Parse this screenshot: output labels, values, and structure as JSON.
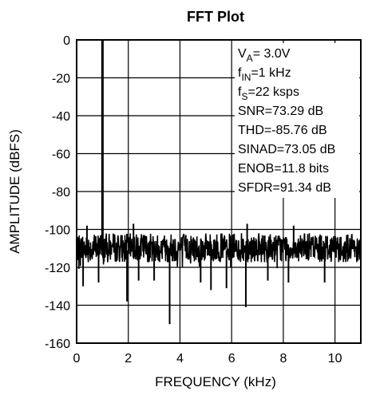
{
  "chart_data": {
    "type": "line",
    "title": "FFT Plot",
    "xlabel": "FREQUENCY (kHz)",
    "ylabel": "AMPLITUDE (dBFS)",
    "xlim": [
      0,
      11
    ],
    "ylim": [
      -160,
      0
    ],
    "x_ticks": [
      0,
      2,
      4,
      6,
      8,
      10
    ],
    "y_ticks": [
      0,
      -20,
      -40,
      -60,
      -80,
      -100,
      -120,
      -140,
      -160
    ],
    "grid": true,
    "series": [
      {
        "noise_floor_band_dBFS": [
          -120,
          -102
        ],
        "points": [
          {
            "x": 1.0,
            "y": 0
          },
          {
            "x": 0.25,
            "y": -130
          },
          {
            "x": 0.85,
            "y": -128
          },
          {
            "x": 1.95,
            "y": -138
          },
          {
            "x": 2.4,
            "y": -127
          },
          {
            "x": 3.0,
            "y": -127
          },
          {
            "x": 3.6,
            "y": -150
          },
          {
            "x": 4.8,
            "y": -128
          },
          {
            "x": 5.2,
            "y": -132
          },
          {
            "x": 5.8,
            "y": -131
          },
          {
            "x": 6.55,
            "y": -141
          },
          {
            "x": 7.4,
            "y": -127
          },
          {
            "x": 8.2,
            "y": -128
          },
          {
            "x": 9.6,
            "y": -128
          },
          {
            "x": 0.4,
            "y": -98
          },
          {
            "x": 2.2,
            "y": -97
          },
          {
            "x": 6.6,
            "y": -97
          },
          {
            "x": 8.4,
            "y": -98
          }
        ]
      }
    ],
    "annotations": [
      {
        "base": "V",
        "sub": "A",
        "text": "= 3.0V"
      },
      {
        "base": "f",
        "sub": "IN",
        "text": "=1 kHz"
      },
      {
        "base": "f",
        "sub": "S",
        "text": "=22 ksps"
      },
      {
        "base": "",
        "sub": "",
        "text": "SNR=73.29 dB"
      },
      {
        "base": "",
        "sub": "",
        "text": "THD=-85.76 dB"
      },
      {
        "base": "",
        "sub": "",
        "text": "SINAD=73.05 dB"
      },
      {
        "base": "",
        "sub": "",
        "text": "ENOB=11.8 bits"
      },
      {
        "base": "",
        "sub": "",
        "text": "SFDR=91.34 dB"
      }
    ]
  }
}
